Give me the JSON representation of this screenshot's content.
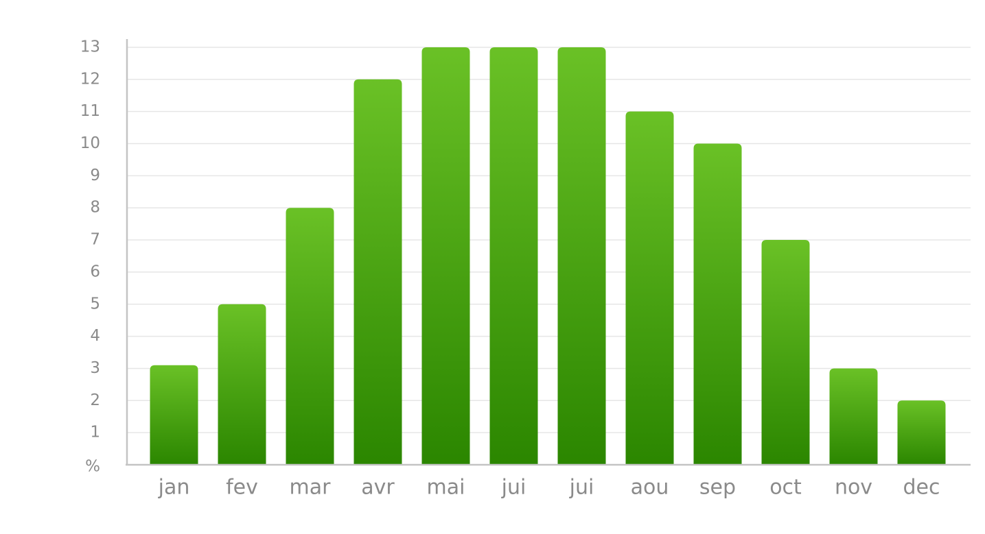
{
  "chart_data": {
    "type": "bar",
    "categories": [
      "jan",
      "fev",
      "mar",
      "avr",
      "mai",
      "jui",
      "jui",
      "aou",
      "sep",
      "oct",
      "nov",
      "dec"
    ],
    "values": [
      3.1,
      5,
      8,
      12,
      13,
      13,
      13,
      11,
      10,
      7,
      3,
      2
    ],
    "ylim": [
      0,
      13
    ],
    "yticks": [
      1,
      2,
      3,
      4,
      5,
      6,
      7,
      8,
      9,
      10,
      11,
      12,
      13
    ],
    "ylabel": "%",
    "xlabel": "",
    "title": "",
    "grid": true,
    "legend": "none",
    "colors": {
      "bar_top": "#6ac126",
      "bar_bottom": "#2b8600",
      "grid": "#e6e6e6",
      "axis": "#c4c4c4",
      "text": "#8a8a8a"
    }
  }
}
